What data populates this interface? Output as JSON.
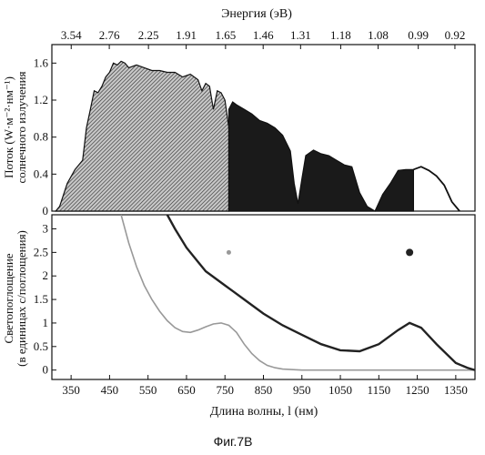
{
  "chart_data": [
    {
      "type": "area",
      "top_axis": {
        "label": "Энергия (эВ)",
        "ticks": [
          "3.54",
          "2.76",
          "2.25",
          "1.91",
          "1.65",
          "1.46",
          "1.31",
          "1.18",
          "1.08",
          "0.99",
          "0.92"
        ]
      },
      "ylabel_lines": [
        "Поток      (W·м⁻²·нм⁻¹)",
        "солнечного излучения"
      ],
      "yticks": [
        "0",
        "0.4",
        "0.8",
        "1.2",
        "1.6"
      ],
      "ylim": [
        0,
        1.8
      ],
      "xlim": [
        300,
        1400
      ],
      "grid": false,
      "series": [
        {
          "fill": "hatched",
          "color": "#555555",
          "x": [
            310,
            320,
            340,
            360,
            380,
            390,
            400,
            410,
            420,
            430,
            440,
            450,
            460,
            470,
            480,
            490,
            500,
            520,
            540,
            560,
            580,
            600,
            620,
            640,
            660,
            680,
            690,
            700,
            710,
            720,
            730,
            740,
            750,
            760
          ],
          "y": [
            0.0,
            0.05,
            0.3,
            0.45,
            0.55,
            0.9,
            1.1,
            1.3,
            1.28,
            1.35,
            1.45,
            1.5,
            1.6,
            1.58,
            1.62,
            1.6,
            1.55,
            1.58,
            1.55,
            1.52,
            1.52,
            1.5,
            1.5,
            1.45,
            1.48,
            1.42,
            1.3,
            1.38,
            1.35,
            1.1,
            1.3,
            1.28,
            1.2,
            0.9
          ]
        },
        {
          "fill": "solid",
          "color": "#1a1a1a",
          "x": [
            760,
            770,
            780,
            800,
            820,
            840,
            860,
            880,
            900,
            920,
            930,
            940,
            950,
            960,
            980,
            1000,
            1020,
            1040,
            1060,
            1080,
            1100,
            1120,
            1140,
            1160,
            1180,
            1200,
            1220,
            1240
          ],
          "y": [
            1.1,
            1.18,
            1.15,
            1.1,
            1.05,
            0.98,
            0.95,
            0.9,
            0.82,
            0.65,
            0.3,
            0.08,
            0.35,
            0.6,
            0.66,
            0.62,
            0.6,
            0.55,
            0.5,
            0.48,
            0.2,
            0.05,
            0.0,
            0.18,
            0.3,
            0.44,
            0.45,
            0.45
          ]
        },
        {
          "fill": "none",
          "color": "#111111",
          "x": [
            1240,
            1260,
            1280,
            1300,
            1320,
            1340,
            1360
          ],
          "y": [
            0.45,
            0.48,
            0.44,
            0.38,
            0.28,
            0.1,
            0.0
          ]
        }
      ]
    },
    {
      "type": "line",
      "ylabel_lines": [
        "Светопоглощение",
        "(в единицах с/поглощения)"
      ],
      "yticks": [
        "0",
        "0.5",
        "1",
        "1.5",
        "2",
        "2.5",
        "3"
      ],
      "ylim": [
        -0.2,
        3.3
      ],
      "xlim": [
        300,
        1400
      ],
      "xticks": [
        "350",
        "450",
        "550",
        "650",
        "750",
        "850",
        "950",
        "1050",
        "1150",
        "1250",
        "1350"
      ],
      "xlabel": "Длина волны, l (нм)",
      "grid": false,
      "series": [
        {
          "color": "#999999",
          "marker_x": 760,
          "marker_y": 2.5,
          "x": [
            480,
            500,
            520,
            540,
            560,
            580,
            600,
            620,
            640,
            660,
            680,
            700,
            720,
            740,
            760,
            780,
            800,
            820,
            840,
            860,
            880,
            900,
            950,
            1000,
            1100,
            1200,
            1300,
            1400
          ],
          "y": [
            3.3,
            2.7,
            2.2,
            1.8,
            1.5,
            1.25,
            1.05,
            0.9,
            0.82,
            0.8,
            0.85,
            0.92,
            0.98,
            1.0,
            0.95,
            0.8,
            0.55,
            0.35,
            0.2,
            0.1,
            0.05,
            0.02,
            0.0,
            0.0,
            0.0,
            0.0,
            0.0,
            0.0
          ]
        },
        {
          "color": "#222222",
          "marker_x": 1230,
          "marker_y": 2.5,
          "x": [
            600,
            620,
            650,
            680,
            700,
            750,
            800,
            850,
            900,
            950,
            1000,
            1050,
            1100,
            1150,
            1200,
            1230,
            1260,
            1300,
            1350,
            1380,
            1400
          ],
          "y": [
            3.3,
            3.0,
            2.6,
            2.3,
            2.1,
            1.8,
            1.5,
            1.2,
            0.95,
            0.75,
            0.55,
            0.42,
            0.4,
            0.55,
            0.85,
            1.0,
            0.9,
            0.55,
            0.15,
            0.05,
            0.0
          ]
        }
      ]
    }
  ],
  "caption": "Фиг.7В"
}
